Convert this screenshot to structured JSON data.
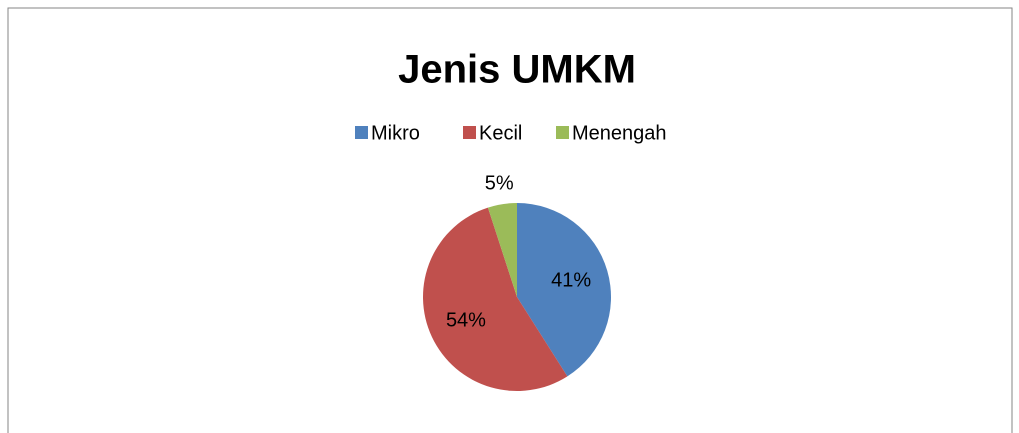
{
  "chart_data": {
    "type": "pie",
    "title": "Jenis UMKM",
    "categories": [
      "Mikro",
      "Kecil",
      "Menengah"
    ],
    "values": [
      41,
      54,
      5
    ],
    "value_labels": [
      "41%",
      "54%",
      "5%"
    ],
    "colors": [
      "#4f81bd",
      "#c0504d",
      "#9bbb59"
    ],
    "legend": "top"
  }
}
